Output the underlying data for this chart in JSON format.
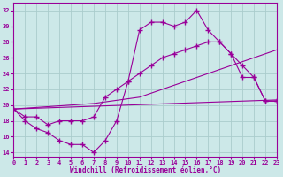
{
  "x": [
    0,
    1,
    2,
    3,
    4,
    5,
    6,
    7,
    8,
    9,
    10,
    11,
    12,
    13,
    14,
    15,
    16,
    17,
    18,
    19,
    20,
    21,
    22,
    23
  ],
  "series_main": [
    19.5,
    18.0,
    17.0,
    16.5,
    15.5,
    15.0,
    15.0,
    14.0,
    15.5,
    18.0,
    23.0,
    29.5,
    30.5,
    30.5,
    30.0,
    30.5,
    32.0,
    29.5,
    28.0,
    26.5,
    23.5,
    23.5,
    20.5,
    20.5
  ],
  "series_line2": [
    19.5,
    18.5,
    18.5,
    17.5,
    18.0,
    18.0,
    18.0,
    18.5,
    21.0,
    22.0,
    23.0,
    24.0,
    25.0,
    26.0,
    26.5,
    27.0,
    27.5,
    28.0,
    28.0,
    26.5,
    25.0,
    23.5,
    20.5,
    20.5
  ],
  "series_line3": [
    19.5,
    19.6,
    19.7,
    19.8,
    19.9,
    20.0,
    20.1,
    20.2,
    20.4,
    20.6,
    20.8,
    21.0,
    21.5,
    22.0,
    22.5,
    23.0,
    23.5,
    24.0,
    24.5,
    25.0,
    25.5,
    26.0,
    26.5,
    27.0
  ],
  "series_line4": [
    19.5,
    19.55,
    19.6,
    19.65,
    19.7,
    19.75,
    19.8,
    19.85,
    19.9,
    19.95,
    20.0,
    20.05,
    20.1,
    20.15,
    20.2,
    20.25,
    20.3,
    20.35,
    20.4,
    20.45,
    20.5,
    20.55,
    20.6,
    20.65
  ],
  "color": "#990099",
  "bg_color": "#cce8e8",
  "grid_color": "#aacccc",
  "xlim": [
    0,
    23
  ],
  "ylim": [
    13.5,
    33.0
  ],
  "yticks": [
    14,
    16,
    18,
    20,
    22,
    24,
    26,
    28,
    30,
    32
  ],
  "xticks": [
    0,
    1,
    2,
    3,
    4,
    5,
    6,
    7,
    8,
    9,
    10,
    11,
    12,
    13,
    14,
    15,
    16,
    17,
    18,
    19,
    20,
    21,
    22,
    23
  ],
  "xlabel": "Windchill (Refroidissement éolien,°C)",
  "marker": "+",
  "markersize": 4.0,
  "linewidth": 0.8
}
